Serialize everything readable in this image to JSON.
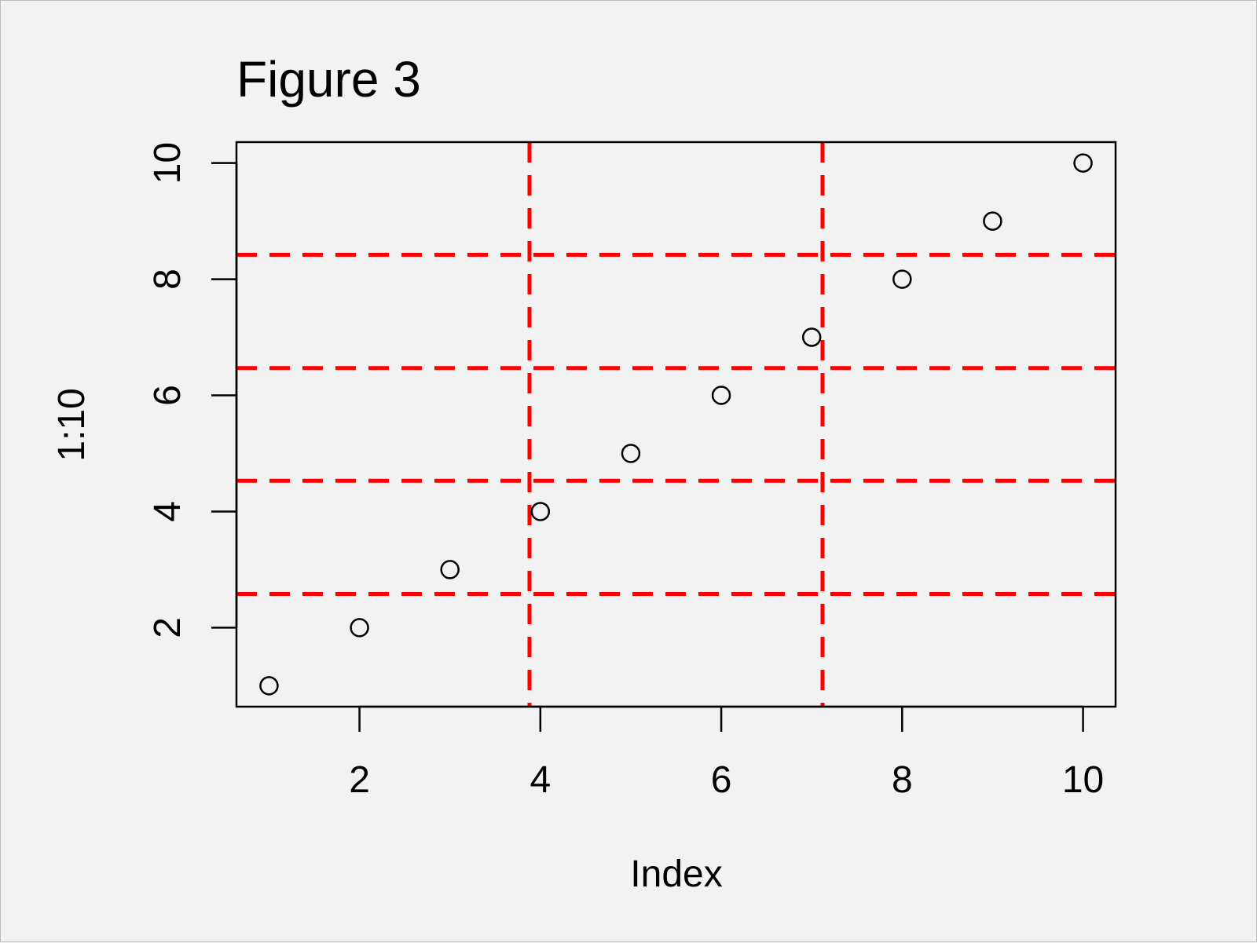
{
  "chart_data": {
    "type": "scatter",
    "title": "Figure 3",
    "xlabel": "Index",
    "ylabel": "1:10",
    "xlim": [
      0.64,
      10.36
    ],
    "ylim": [
      0.64,
      10.36
    ],
    "x_ticks": [
      2,
      4,
      6,
      8,
      10
    ],
    "y_ticks": [
      2,
      4,
      6,
      8,
      10
    ],
    "x_tick_labels": [
      "2",
      "4",
      "6",
      "8",
      "10"
    ],
    "y_tick_labels": [
      "2",
      "4",
      "6",
      "8",
      "10"
    ],
    "marker": "open-circle",
    "point_color": "#000000",
    "x": [
      1,
      2,
      3,
      4,
      5,
      6,
      7,
      8,
      9,
      10
    ],
    "y": [
      1,
      2,
      3,
      4,
      5,
      6,
      7,
      8,
      9,
      10
    ],
    "grid": {
      "style": "dashed",
      "color": "#ff0000",
      "vertical_lines_x": [
        3.88,
        7.12
      ],
      "horizontal_lines_y": [
        2.58,
        4.53,
        6.47,
        8.42
      ]
    }
  }
}
